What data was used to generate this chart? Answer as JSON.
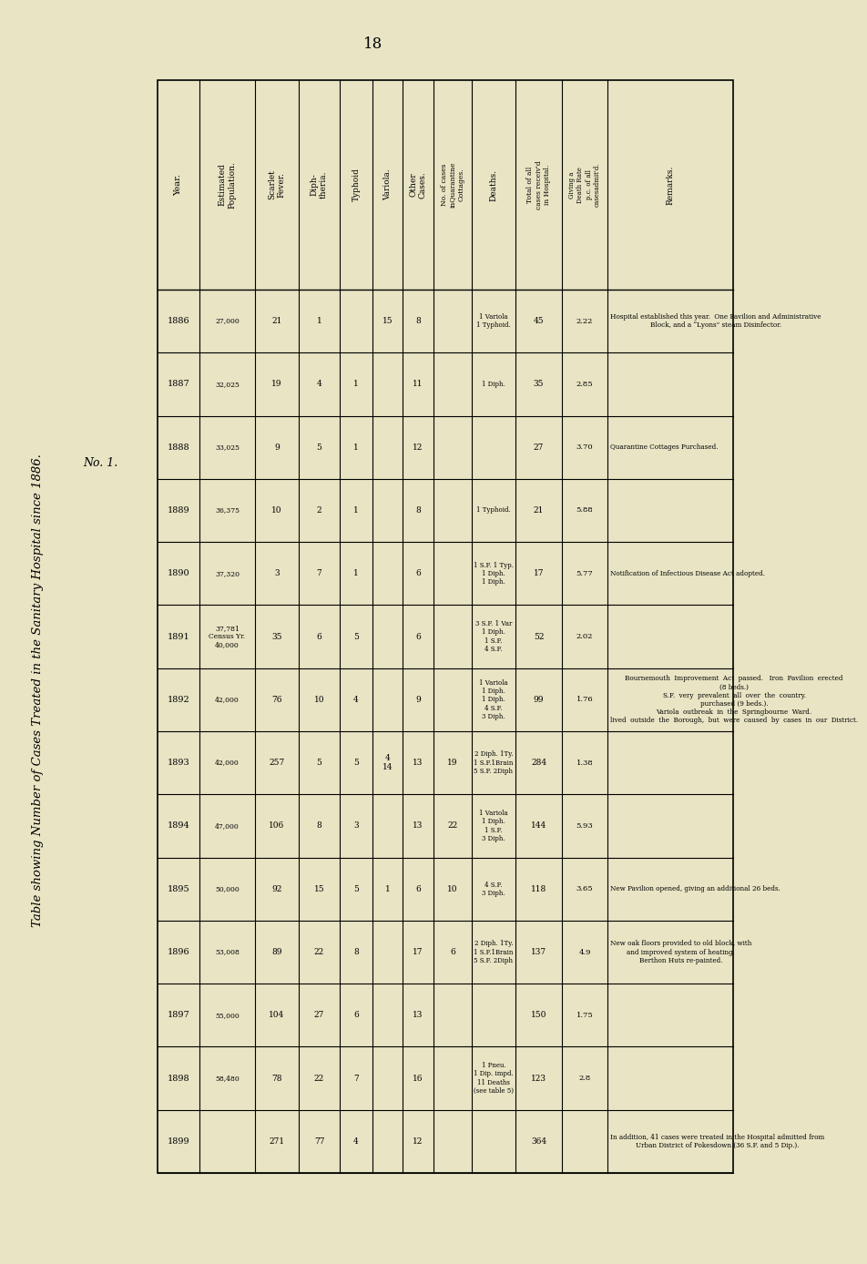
{
  "title": "Table showing Number of Cases Treated in the Sanitary Hospital since 1886.",
  "no_label": "No. 1.",
  "page_number": "18",
  "bg_color": "#e8e4c4",
  "years": [
    "1886",
    "1887",
    "1888",
    "1889",
    "1890",
    "1891",
    "1892",
    "1893",
    "1894",
    "1895",
    "1896",
    "1897",
    "1898",
    "1899"
  ],
  "estimated_population": [
    "27,000",
    "32,025",
    "33,025",
    "36,375",
    "37,320",
    "37,781\nCensus Yr.\n40,000",
    "42,000",
    "42,000",
    "47,000",
    "50,000",
    "53,008",
    "55,000",
    "58,480",
    ""
  ],
  "scarlet_fever": [
    "21",
    "19",
    "9",
    "10",
    "3",
    "35",
    "76",
    "257",
    "106",
    "92",
    "89",
    "104",
    "78",
    "271"
  ],
  "diphtheria": [
    "1",
    "4",
    "5",
    "2",
    "7",
    "6",
    "10",
    "5",
    "8",
    "15",
    "22",
    "27",
    "22",
    "77"
  ],
  "typhoid": [
    "",
    "1",
    "1",
    "1",
    "1",
    "5",
    "4",
    "5",
    "3",
    "5",
    "8",
    "6",
    "7",
    "4"
  ],
  "variola": [
    "15",
    "",
    "",
    "",
    "",
    "",
    "",
    "4\n14",
    "",
    "1",
    "",
    "",
    "",
    ""
  ],
  "other_cases": [
    "8",
    "11",
    "12",
    "8",
    "6",
    "6",
    "9",
    "13",
    "13",
    "6",
    "17",
    "13",
    "16",
    "12"
  ],
  "quarantine_cottages": [
    "",
    "",
    "",
    "",
    "",
    "",
    "",
    "19",
    "22",
    "10",
    "6",
    "",
    "",
    ""
  ],
  "deaths": [
    "1 Variola\n1 Typhoid.",
    "1 Diph.",
    "",
    "1 Typhoid.",
    "1 S.F. 1 Typ.\n1 Diph.\n1 Diph.",
    "3 S.F. 1 Var\n1 Diph.\n1 S.F.\n4 S.F.",
    "1 Variola\n1 Diph.\n1 Diph.\n4 S.F.\n3 Diph.",
    "2 Diph. 1Ty.\n1 S.F.1Brain\n5 S.F. 2Diph",
    "1 Variola\n1 Diph.\n1 S.F.\n3 Diph.",
    "4 S.F.\n3 Diph.",
    "2 Diph. 1Ty.\n1 S.F.1Brain\n5 S.F. 2Diph",
    "",
    "1 Pneu.\n1 Dip. impd.\n11 Deaths\n(see table 5)",
    ""
  ],
  "total_cases": [
    "45",
    "35",
    "27",
    "21",
    "17",
    "52",
    "99",
    "284",
    "144",
    "118",
    "137",
    "150",
    "123",
    "364"
  ],
  "death_rate": [
    "2.22",
    "2.85",
    "3.70",
    "5.88",
    "5.77",
    "2.02",
    "1.76",
    "1.38",
    "5.93",
    "3.65",
    "4.9",
    "1.75",
    "2.8",
    ""
  ],
  "remarks": [
    "Hospital established this year.  One Pavilion and Administrative\nBlock, and a “Lyons” steam Disinfector.",
    "",
    "Quarantine Cottages Purchased.",
    "",
    "Notification of Infectious Disease Act adopted.",
    "",
    "Bournemouth  Improvement  Act  passed.   Iron  Pavilion  erected\n(8 beds.)\nS.F.  very  prevalent  all  over  the  country.\npurchased (9 beds.).\nVariola  outbreak  in  the  Springbourne  Ward.\nlived  outside  the  Borough,  but  were  caused  by  cases  in  our  District.",
    "",
    "",
    "New Pavilion opened, giving an additional 26 beds.",
    "New oak floors provided to old block, with\nand improved system of heating.\nBerthon Huts re-painted.",
    "",
    "",
    "In addition, 41 cases were treated in the Hospital admitted from\nUrban District of Pokesdown (36 S.F. and 5 Dip.)."
  ]
}
